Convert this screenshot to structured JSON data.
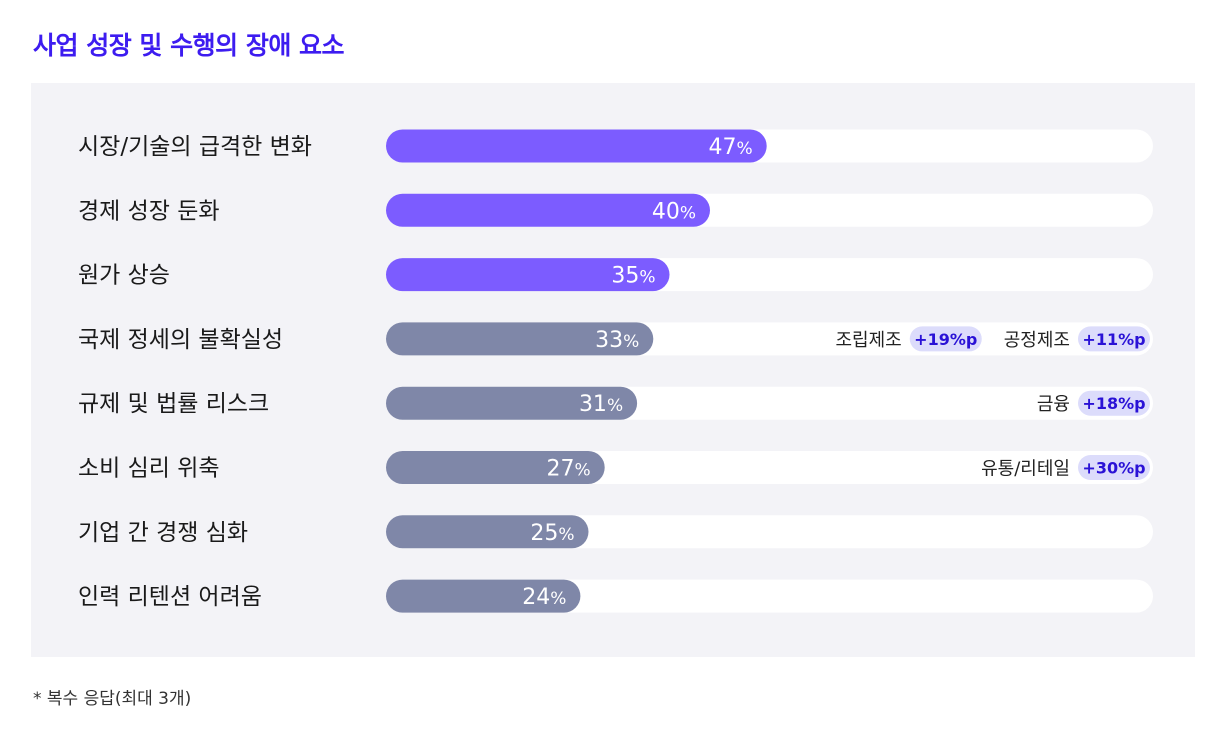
{
  "colors": {
    "title": "#3d1cf0",
    "highlight_bar": "#7c5cff",
    "normal_bar": "#7f87a8",
    "track": "#ffffff",
    "panel_background": "#f3f3f7",
    "badge_background": "#dcdcfb",
    "badge_text": "#2a12d6"
  },
  "chart_data": {
    "type": "bar",
    "orientation": "horizontal",
    "title": "사업 성장 및 수행의 장애 요소",
    "value_suffix": "%",
    "xlim": [
      0,
      100
    ],
    "grid": false,
    "categories": [
      "시장/기술의 급격한 변화",
      "경제 성장 둔화",
      "원가 상승",
      "국제 정세의 불확실성",
      "규제 및 법률 리스크",
      "소비 심리 위축",
      "기업 간 경쟁 심화",
      "인력 리텐션 어려움"
    ],
    "values": [
      47,
      40,
      35,
      33,
      31,
      27,
      25,
      24
    ],
    "highlighted": [
      true,
      true,
      true,
      false,
      false,
      false,
      false,
      false
    ],
    "annotations": [
      {
        "category_index": 3,
        "items": [
          {
            "label": "조립제조",
            "badge": "+19%p"
          },
          {
            "label": "공정제조",
            "badge": "+11%p"
          }
        ]
      },
      {
        "category_index": 4,
        "items": [
          {
            "label": "금융",
            "badge": "+18%p"
          }
        ]
      },
      {
        "category_index": 5,
        "items": [
          {
            "label": "유통/리테일",
            "badge": "+30%p"
          }
        ]
      }
    ]
  },
  "footnote": "* 복수 응답(최대 3개)"
}
